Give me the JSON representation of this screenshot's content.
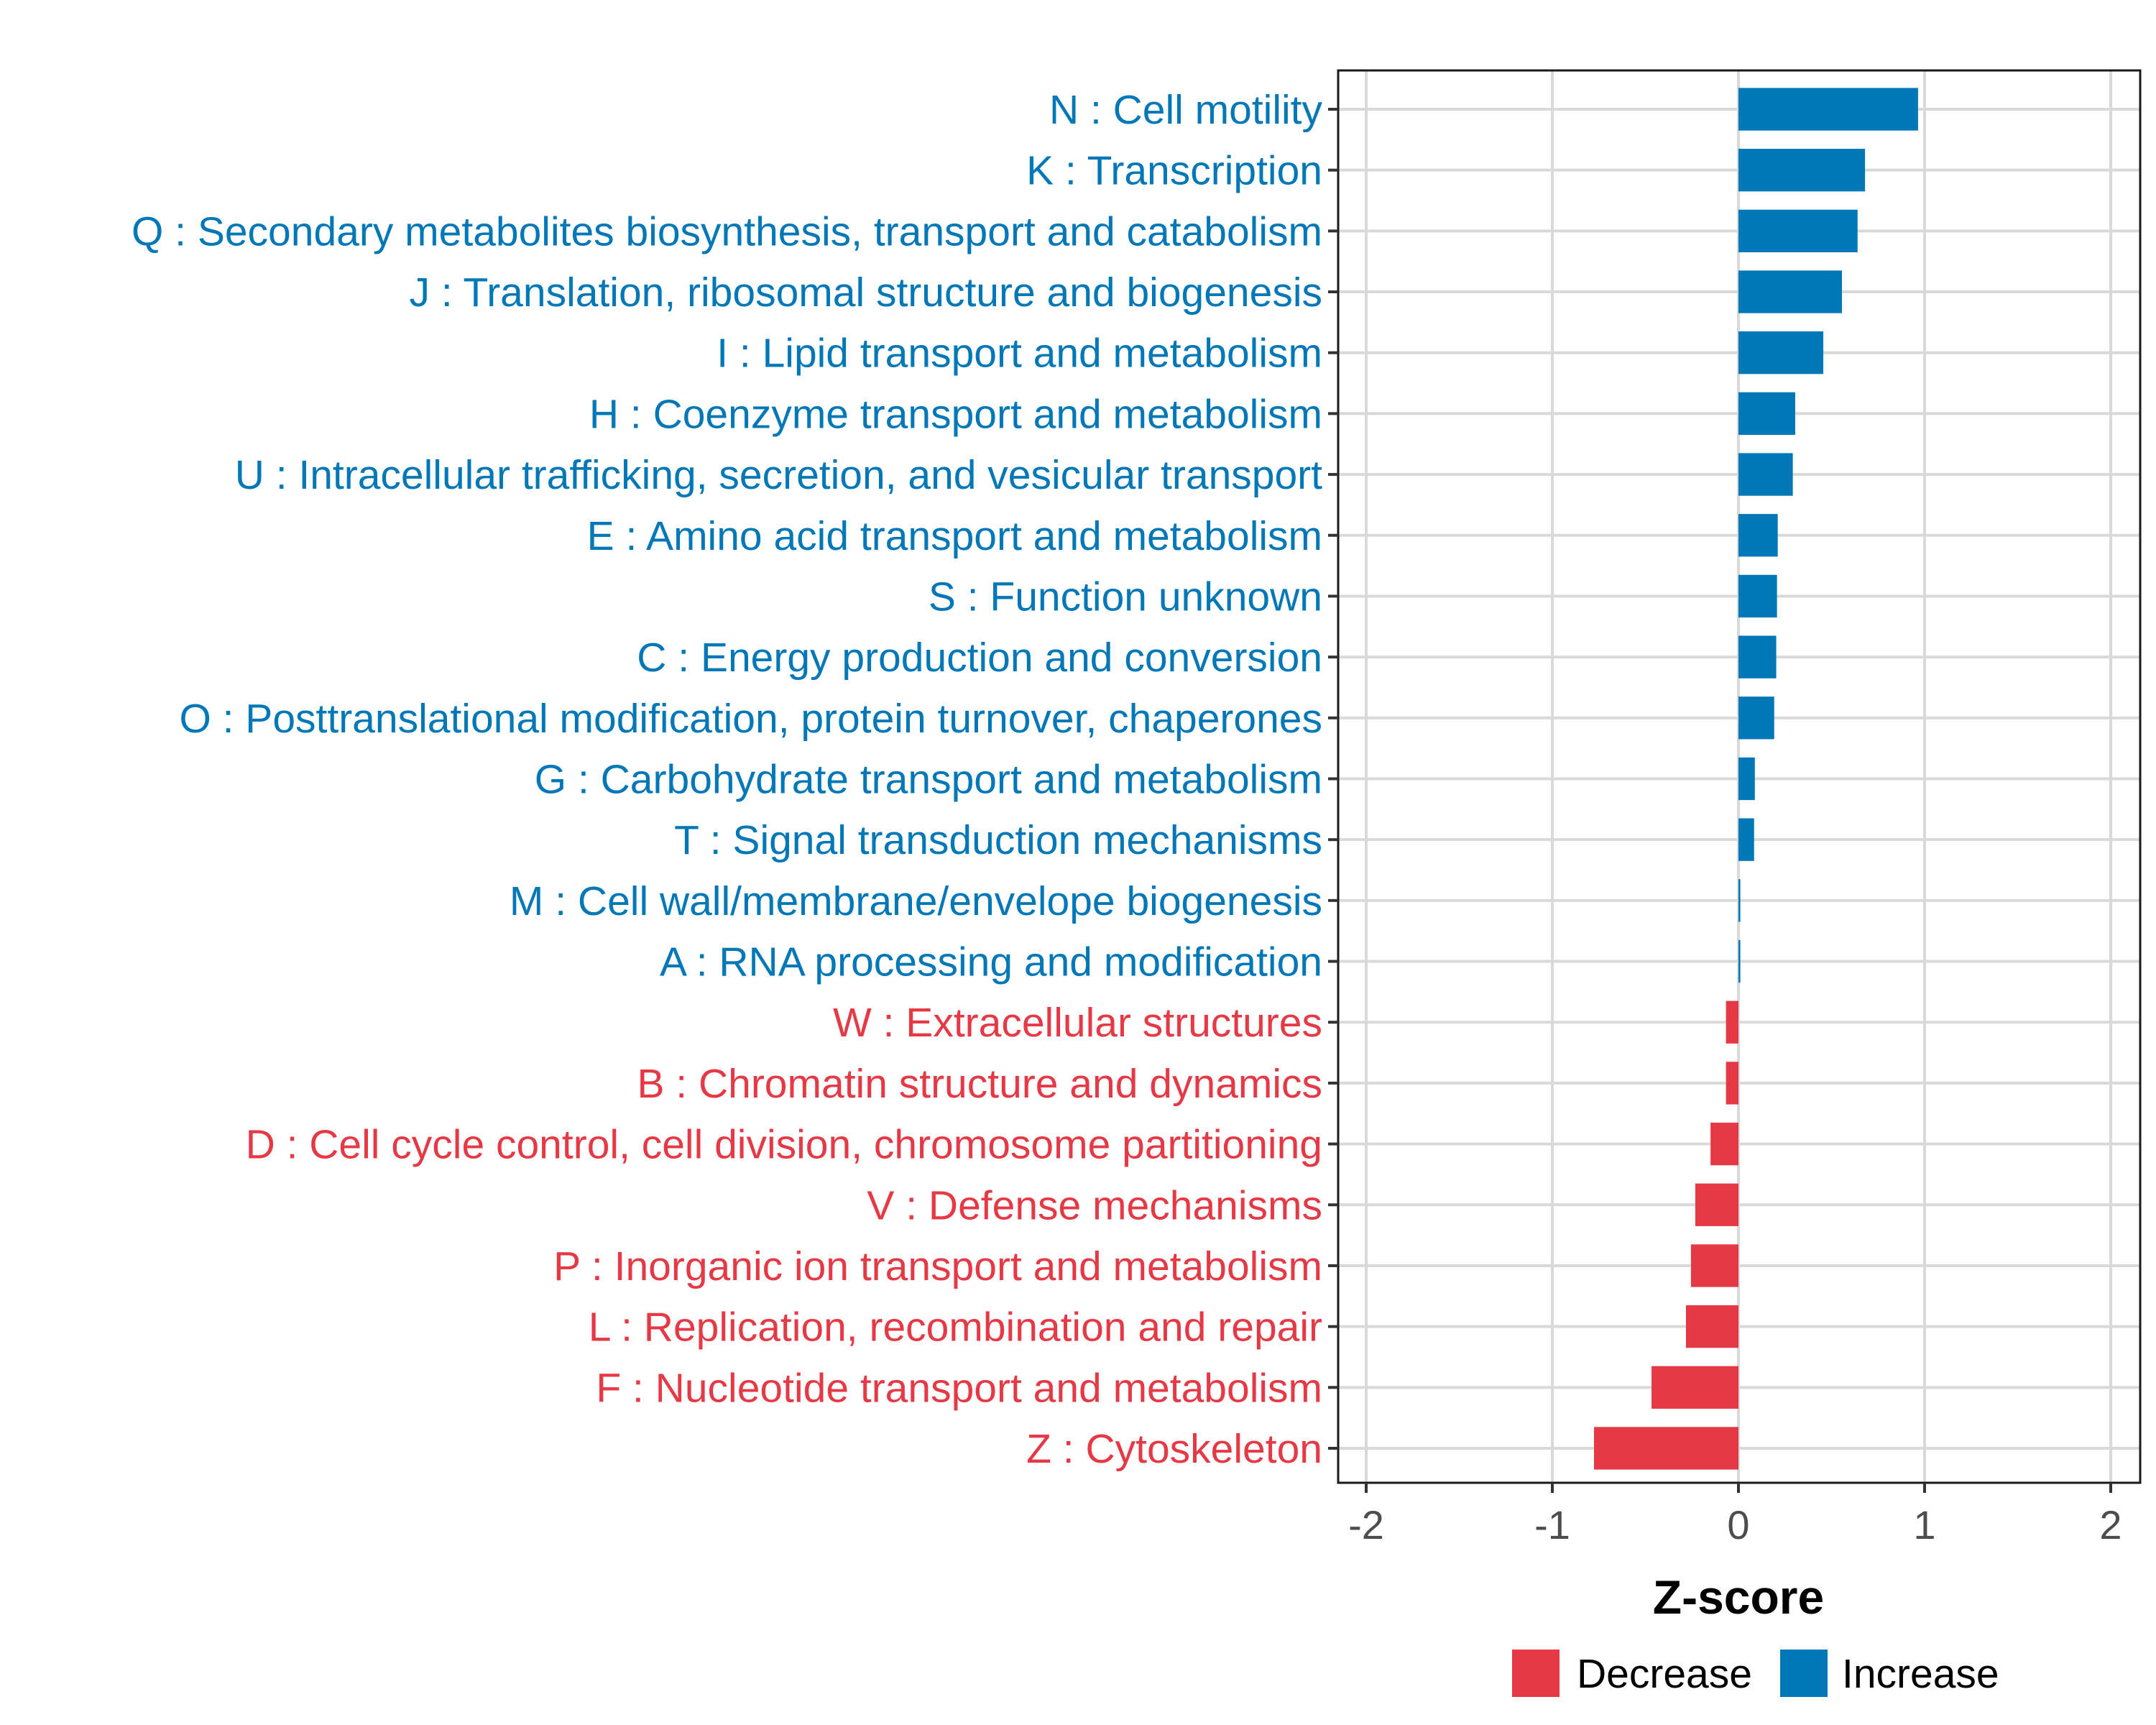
{
  "chart_data": {
    "type": "bar",
    "orientation": "horizontal",
    "title": "",
    "xlabel": "Z-score",
    "ylabel": "",
    "xlim": [
      -2,
      2
    ],
    "xticks": [
      -2,
      -1,
      0,
      1,
      2
    ],
    "xtick_labels": [
      "-2",
      "-1",
      "0",
      "1",
      "2"
    ],
    "grid": true,
    "legend_position": "bottom",
    "colors": {
      "Decrease": "#E63946",
      "Increase": "#0077B6"
    },
    "legend": [
      {
        "label": "Decrease",
        "color": "#E63946"
      },
      {
        "label": "Increase",
        "color": "#0077B6"
      }
    ],
    "categories": [
      "N : Cell motility",
      "K : Transcription",
      "Q : Secondary metabolites biosynthesis, transport and catabolism",
      "J : Translation, ribosomal structure and biogenesis",
      "I : Lipid transport and metabolism",
      "H : Coenzyme transport and metabolism",
      "U : Intracellular trafficking, secretion, and vesicular transport",
      "E : Amino acid transport and metabolism",
      "S : Function unknown",
      "C : Energy production and conversion",
      "O : Posttranslational modification, protein turnover, chaperones",
      "G : Carbohydrate transport and metabolism",
      "T : Signal transduction mechanisms",
      "M : Cell wall/membrane/envelope biogenesis",
      "A : RNA processing and modification",
      "W : Extracellular structures",
      "B : Chromatin structure and dynamics",
      "D : Cell cycle control, cell division, chromosome partitioning",
      "V : Defense mechanisms",
      "P : Inorganic ion transport and metabolism",
      "L : Replication, recombination and repair",
      "F : Nucleotide transport and metabolism",
      "Z : Cytoskeleton"
    ],
    "values": [
      0.965,
      0.68,
      0.64,
      0.556,
      0.456,
      0.305,
      0.292,
      0.211,
      0.207,
      0.203,
      0.192,
      0.088,
      0.084,
      0.01,
      0.01,
      -0.067,
      -0.067,
      -0.15,
      -0.232,
      -0.255,
      -0.282,
      -0.467,
      -0.776
    ],
    "groups": [
      "Increase",
      "Increase",
      "Increase",
      "Increase",
      "Increase",
      "Increase",
      "Increase",
      "Increase",
      "Increase",
      "Increase",
      "Increase",
      "Increase",
      "Increase",
      "Increase",
      "Increase",
      "Decrease",
      "Decrease",
      "Decrease",
      "Decrease",
      "Decrease",
      "Decrease",
      "Decrease",
      "Decrease"
    ]
  }
}
